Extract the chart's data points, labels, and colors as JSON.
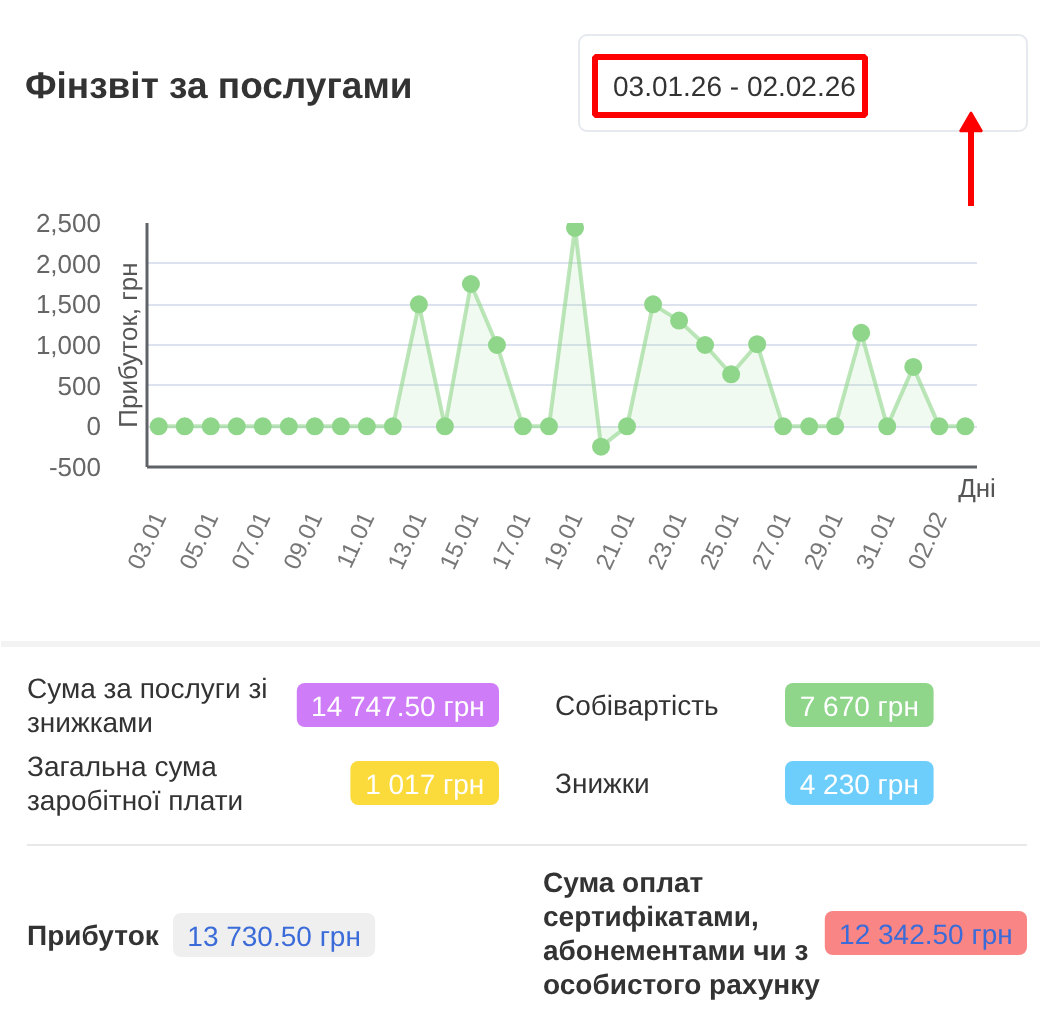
{
  "chart_data": [
    {
      "type": "area",
      "title": "Фінзвіт за послугами",
      "subtitle": "03.01.26 - 02.02.26",
      "xlabel": "Дні",
      "ylabel": "Прибуток, грн",
      "categories": [
        "03.01",
        null,
        "05.01",
        null,
        "07.01",
        null,
        "09.01",
        null,
        "11.01",
        null,
        "13.01",
        null,
        "15.01",
        null,
        "17.01",
        null,
        "19.01",
        null,
        "21.01",
        null,
        "23.01",
        null,
        "25.01",
        null,
        "27.01",
        null,
        "29.01",
        null,
        "31.01",
        null,
        "02.02",
        null
      ],
      "values": [
        0,
        0,
        0,
        0,
        0,
        0,
        0,
        0,
        0,
        0,
        1500,
        0,
        1750,
        1000,
        0,
        0,
        2440,
        -250,
        0,
        1500,
        1300,
        1000,
        640,
        1010,
        0,
        0,
        0,
        1150,
        0,
        730,
        0,
        0
      ],
      "color": "#8fd68b",
      "marker": "circle",
      "grid": "y",
      "ylim": [
        -500,
        2500
      ],
      "yticks": [
        -500,
        0,
        500,
        {
          "value": 1000,
          "label": "1,000"
        },
        {
          "value": 1500,
          "label": "1,500"
        },
        {
          "value": 2000,
          "label": "2,000"
        },
        {
          "value": 2500,
          "label": "2,500"
        }
      ]
    },
    {
      "type": "other",
      "annotations": [
        "Сума за послуги зі знижками",
        "14 747.50 грн",
        "Собівартість",
        "7 670 грн",
        "Загальна сума заробітної плати",
        "1 017 грн",
        "Знижки",
        "4 230 грн",
        "Прибуток",
        "13 730.50 грн",
        "Сума оплат сертифікатами, абонементами чи з особистого рахунку",
        "12 342.50 грн"
      ]
    }
  ]
}
